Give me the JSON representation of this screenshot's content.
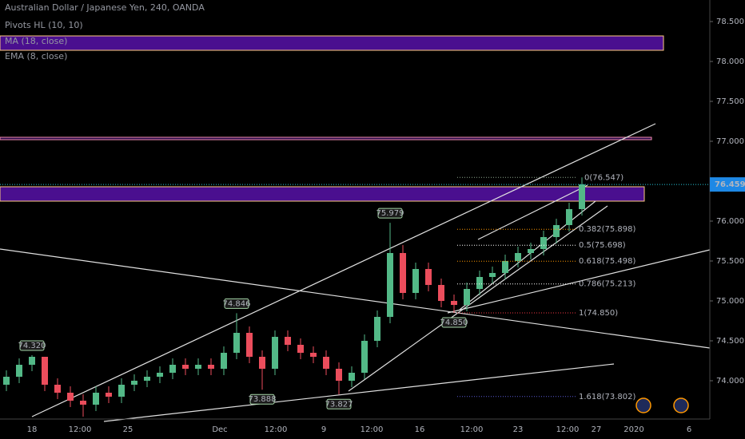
{
  "chart_data": {
    "type": "candlestick",
    "title": "Australian Dollar / Japanese Yen, 240, OANDA",
    "indicators": [
      "Pivots HL (10, 10)",
      "MA (18, close)",
      "EMA (8, close)"
    ],
    "up_color": "#53b987",
    "down_color": "#eb4d5c",
    "open": [
      73.95,
      74.05,
      74.2,
      74.3,
      73.95,
      73.85,
      73.75,
      73.7,
      73.85,
      73.8,
      73.95,
      74.0,
      74.05,
      74.1,
      74.2,
      74.15,
      74.2,
      74.15,
      74.35,
      74.6,
      74.3,
      74.15,
      74.55,
      74.45,
      74.35,
      74.3,
      74.15,
      74.0,
      74.1,
      74.5,
      74.8,
      75.6,
      75.1,
      75.4,
      75.2,
      75.0,
      74.95,
      75.15,
      75.3,
      75.35,
      75.5,
      75.6,
      75.65,
      75.8,
      75.95,
      76.15
    ],
    "high": [
      74.13,
      74.28,
      74.32,
      74.3,
      74.03,
      73.93,
      73.83,
      73.93,
      73.93,
      74.03,
      74.08,
      74.13,
      74.18,
      74.28,
      74.28,
      74.28,
      74.28,
      74.43,
      74.846,
      74.68,
      74.38,
      74.63,
      74.63,
      74.53,
      74.43,
      74.38,
      74.23,
      74.18,
      74.58,
      74.88,
      75.979,
      75.7,
      75.48,
      75.48,
      75.28,
      75.08,
      75.23,
      75.38,
      75.43,
      75.58,
      75.68,
      75.73,
      75.88,
      76.03,
      76.23,
      76.547
    ],
    "low": [
      73.87,
      73.97,
      74.12,
      73.87,
      73.77,
      73.67,
      73.55,
      73.62,
      73.72,
      73.72,
      73.87,
      73.92,
      73.97,
      74.02,
      74.07,
      74.07,
      74.07,
      74.07,
      74.27,
      74.22,
      73.888,
      74.07,
      74.37,
      74.27,
      74.22,
      74.07,
      73.827,
      73.92,
      74.02,
      74.42,
      74.72,
      75.02,
      75.02,
      75.12,
      74.92,
      74.85,
      74.87,
      75.07,
      75.22,
      75.27,
      75.42,
      75.52,
      75.57,
      75.72,
      75.87,
      76.07
    ],
    "close": [
      74.05,
      74.2,
      74.3,
      73.95,
      73.85,
      73.75,
      73.7,
      73.85,
      73.8,
      73.95,
      74.0,
      74.05,
      74.1,
      74.2,
      74.15,
      74.2,
      74.15,
      74.35,
      74.6,
      74.3,
      74.15,
      74.55,
      74.45,
      74.35,
      74.3,
      74.15,
      74.0,
      74.1,
      74.5,
      74.8,
      75.6,
      75.1,
      75.4,
      75.2,
      75.0,
      74.95,
      75.15,
      75.3,
      75.35,
      75.5,
      75.6,
      75.65,
      75.8,
      75.95,
      76.15,
      76.459
    ],
    "last_price": {
      "value": 76.459,
      "label": "76.459"
    },
    "pivot_labels": [
      {
        "value": 74.32,
        "label": "74.320"
      },
      {
        "value": 74.846,
        "label": "74.846"
      },
      {
        "value": 75.979,
        "label": "75.979"
      },
      {
        "value": 73.888,
        "label": "73.888"
      },
      {
        "value": 73.827,
        "label": "73.827"
      },
      {
        "value": 74.85,
        "label": "74.850"
      }
    ],
    "fib_levels": [
      {
        "value": 76.547,
        "label": "0(76.547)",
        "color": "#8fa88f"
      },
      {
        "value": 75.898,
        "label": "0.382(75.898)",
        "color": "#ff9800"
      },
      {
        "value": 75.698,
        "label": "0.5(75.698)",
        "color": "#ffffff"
      },
      {
        "value": 75.498,
        "label": "0.618(75.498)",
        "color": "#ff9800"
      },
      {
        "value": 75.213,
        "label": "0.786(75.213)",
        "color": "#ffffff"
      },
      {
        "value": 74.85,
        "label": "1(74.850)",
        "color": "#f23645"
      },
      {
        "value": 73.802,
        "label": "1.618(73.802)",
        "color": "#5b5bd6"
      }
    ],
    "zones": [
      {
        "top": 78.32,
        "bottom": 78.14,
        "color": "#4a0f8f"
      },
      {
        "top": 77.05,
        "bottom": 77.02,
        "color": "#2a0a4a"
      },
      {
        "top": 76.43,
        "bottom": 76.25,
        "color": "#4a0f8f"
      }
    ],
    "x_labels": [
      "18",
      "12:00",
      "25",
      "Dec",
      "12:00",
      "9",
      "12:00",
      "16",
      "12:00",
      "23",
      "12:00",
      "27",
      "2020",
      "6"
    ],
    "ylim": [
      73.52,
      78.77
    ],
    "yticks": [
      {
        "value": 78.5,
        "label": "78.500"
      },
      {
        "value": 78.0,
        "label": "78.000"
      },
      {
        "value": 77.5,
        "label": "77.500"
      },
      {
        "value": 77.0,
        "label": "77.000"
      },
      {
        "value": 76.5,
        "label": "76.500"
      },
      {
        "value": 76.0,
        "label": "76.000"
      },
      {
        "value": 75.5,
        "label": "75.500"
      },
      {
        "value": 75.0,
        "label": "75.000"
      },
      {
        "value": 74.5,
        "label": "74.500"
      },
      {
        "value": 74.0,
        "label": "74.000"
      }
    ]
  }
}
